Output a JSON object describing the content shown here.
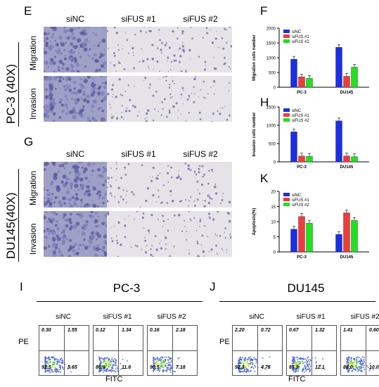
{
  "panels": {
    "E": "E",
    "F": "F",
    "G": "G",
    "H": "H",
    "K": "K",
    "I": "I",
    "J": "J"
  },
  "micro_columns": [
    "siNC",
    "siFUS #1",
    "siFUS #2"
  ],
  "micro_rows": [
    "Migration",
    "Invasion"
  ],
  "cell_lines": {
    "pc3_side": "PC-3 (40X)",
    "du145_side": "DU145(40X)"
  },
  "colors": {
    "siNC": "#1a2ee8",
    "siFUS1": "#ee3b3b",
    "siFUS2": "#1fe11f"
  },
  "chart_data": [
    {
      "type": "bar",
      "ylabel": "Migration cells number",
      "categories": [
        "PC-3",
        "DU145"
      ],
      "yticks": [
        "0",
        "500",
        "1000",
        "1500",
        "2000"
      ],
      "ylim": [
        0,
        2000
      ],
      "legend": [
        "siNC",
        "siFUS #1",
        "siFUS #2"
      ],
      "series": [
        {
          "name": "siNC",
          "values": [
            950,
            1350
          ]
        },
        {
          "name": "siFUS #1",
          "values": [
            350,
            370
          ]
        },
        {
          "name": "siFUS #2",
          "values": [
            300,
            680
          ]
        }
      ]
    },
    {
      "type": "bar",
      "ylabel": "Invasion cells number",
      "categories": [
        "PC-3",
        "DU145"
      ],
      "yticks": [
        "0",
        "500",
        "1000",
        "1500"
      ],
      "ylim": [
        0,
        1500
      ],
      "legend": [
        "siNC",
        "siFUS #1",
        "siFUS #2"
      ],
      "series": [
        {
          "name": "siNC",
          "values": [
            820,
            1120
          ]
        },
        {
          "name": "siFUS #1",
          "values": [
            160,
            160
          ]
        },
        {
          "name": "siFUS #2",
          "values": [
            150,
            140
          ]
        }
      ]
    },
    {
      "type": "bar",
      "ylabel": "Apoptosis(%)",
      "categories": [
        "PC-3",
        "DU145"
      ],
      "yticks": [
        "0",
        "5",
        "10",
        "15",
        "20"
      ],
      "ylim": [
        0,
        20
      ],
      "legend": [
        "siNC",
        "siFUS #1",
        "siFUS #2"
      ],
      "series": [
        {
          "name": "siNC",
          "values": [
            7.5,
            5.8
          ]
        },
        {
          "name": "siFUS #1",
          "values": [
            11.7,
            12.9
          ]
        },
        {
          "name": "siFUS #2",
          "values": [
            9.5,
            10.4
          ]
        }
      ]
    }
  ],
  "flow": {
    "axis_y": "PE",
    "axis_x": "FITC",
    "groups": [
      {
        "title": "PC-3",
        "plots": [
          {
            "label": "siNC",
            "ul": "0.30",
            "ur": "1.55",
            "ll": "92.5",
            "lr": "5.65"
          },
          {
            "label": "siFUS #1",
            "ul": "0.12",
            "ur": "1.34",
            "ll": "86.9",
            "lr": "11.6"
          },
          {
            "label": "siFUS #2",
            "ul": "0.16",
            "ur": "2.18",
            "ll": "90.5",
            "lr": "7.18"
          }
        ]
      },
      {
        "title": "DU145",
        "plots": [
          {
            "label": "siNC",
            "ul": "2.20",
            "ur": "0.72",
            "ll": "92.3",
            "lr": "4.78"
          },
          {
            "label": "siFUS #1",
            "ul": "0.67",
            "ur": "1.32",
            "ll": "85.9",
            "lr": "12.1"
          },
          {
            "label": "siFUS #2",
            "ul": "1.41",
            "ur": "0.60",
            "ll": "88.0",
            "lr": "10.00"
          }
        ]
      }
    ]
  }
}
